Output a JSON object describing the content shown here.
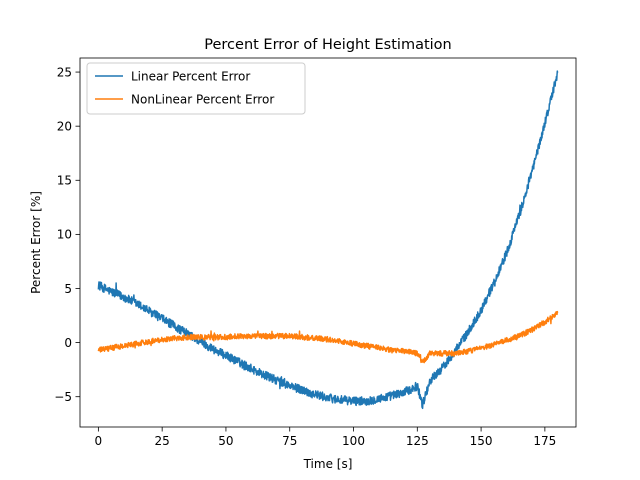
{
  "chart_data": {
    "type": "line",
    "title": "Percent Error of Height Estimation",
    "xlabel": "Time [s]",
    "ylabel": "Percent Error [%]",
    "xlim": [
      -7.2,
      187.2
    ],
    "ylim": [
      -7.8,
      26.3
    ],
    "xticks": [
      0,
      25,
      50,
      75,
      100,
      125,
      150,
      175
    ],
    "yticks": [
      -5,
      0,
      5,
      10,
      15,
      20,
      25
    ],
    "grid": false,
    "legend_position": "top-left",
    "series": [
      {
        "name": "Linear Percent Error",
        "color": "#1f77b4",
        "noise": 0.4,
        "x": [
          0,
          5,
          10,
          15,
          20,
          25,
          30,
          35,
          40,
          45,
          50,
          55,
          60,
          65,
          70,
          75,
          80,
          85,
          90,
          95,
          100,
          105,
          110,
          115,
          120,
          125,
          127,
          130,
          135,
          140,
          145,
          150,
          155,
          160,
          165,
          170,
          175,
          180
        ],
        "y": [
          5.3,
          4.7,
          4.2,
          3.6,
          2.9,
          2.2,
          1.5,
          0.8,
          0.1,
          -0.6,
          -1.2,
          -1.8,
          -2.4,
          -3.0,
          -3.5,
          -4.0,
          -4.4,
          -4.8,
          -5.1,
          -5.3,
          -5.4,
          -5.4,
          -5.2,
          -4.9,
          -4.6,
          -4.0,
          -5.8,
          -3.5,
          -2.3,
          -0.7,
          1.0,
          3.0,
          5.5,
          8.3,
          11.8,
          15.8,
          20.3,
          24.9
        ]
      },
      {
        "name": "NonLinear Percent Error",
        "color": "#ff7f0e",
        "noise": 0.25,
        "x": [
          0,
          5,
          10,
          15,
          20,
          25,
          30,
          35,
          40,
          45,
          50,
          55,
          60,
          65,
          70,
          75,
          80,
          85,
          90,
          95,
          100,
          105,
          110,
          115,
          120,
          125,
          127,
          130,
          135,
          140,
          145,
          150,
          155,
          160,
          165,
          170,
          175,
          180
        ],
        "y": [
          -0.7,
          -0.5,
          -0.3,
          -0.1,
          0.1,
          0.3,
          0.4,
          0.5,
          0.5,
          0.5,
          0.5,
          0.6,
          0.6,
          0.6,
          0.6,
          0.6,
          0.5,
          0.4,
          0.3,
          0.1,
          -0.1,
          -0.3,
          -0.5,
          -0.7,
          -0.8,
          -1.0,
          -1.8,
          -1.0,
          -1.0,
          -1.0,
          -0.8,
          -0.5,
          -0.2,
          0.2,
          0.6,
          1.2,
          1.9,
          2.7
        ]
      }
    ]
  }
}
